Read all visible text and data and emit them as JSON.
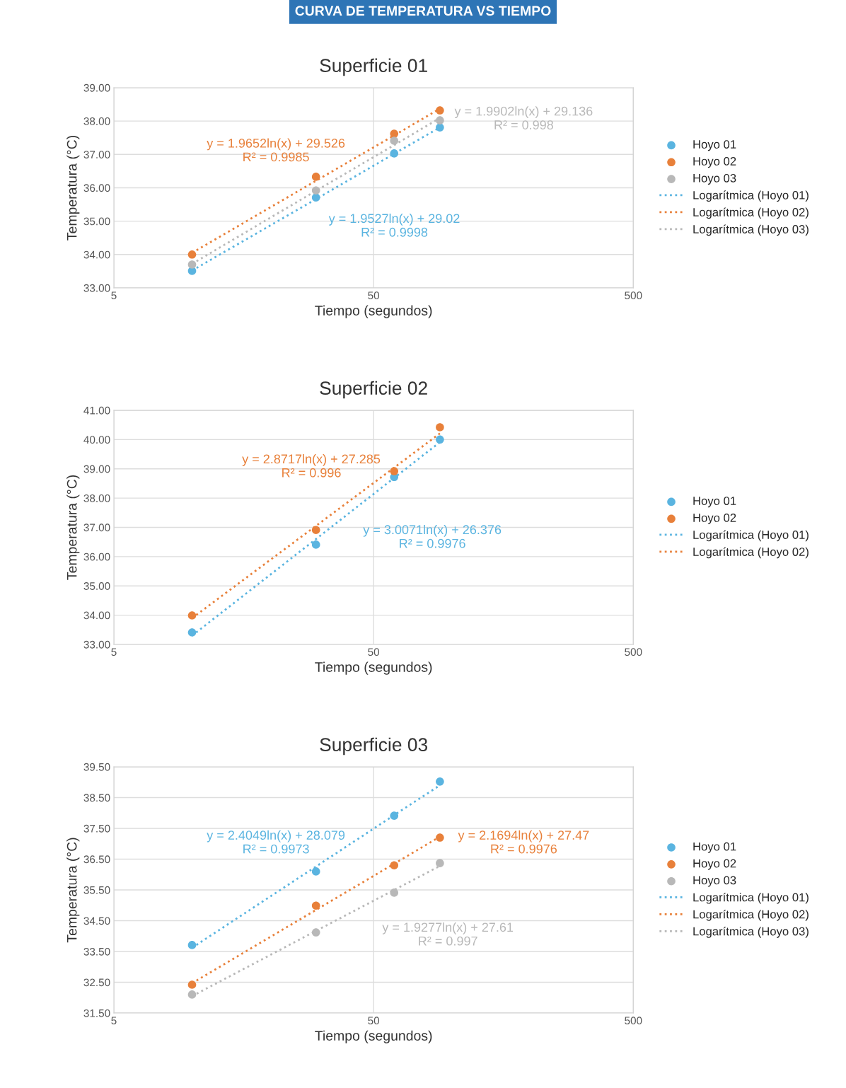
{
  "chart_data": [
    {
      "type": "scatter",
      "title": "Superficie 01",
      "xlabel": "Tiempo (segundos)",
      "ylabel": "Temperatura (°C)",
      "log": "x",
      "grid": true,
      "legend": "right",
      "marker": "circle",
      "xlim": [
        5,
        500
      ],
      "xticks": [
        5,
        50,
        500
      ],
      "ylim": [
        33,
        39
      ],
      "yticks": [
        {
          "value": 33,
          "label": "33.00"
        },
        {
          "value": 34,
          "label": "34.00"
        },
        {
          "value": 35,
          "label": "35.00"
        },
        {
          "value": 36,
          "label": "36.00"
        },
        {
          "value": 37,
          "label": "37.00"
        },
        {
          "value": 38,
          "label": "38.00"
        },
        {
          "value": 39,
          "label": "39.00"
        }
      ],
      "x": [
        10,
        30,
        60,
        90
      ],
      "series": [
        {
          "name": "Hoyo 01",
          "color": "#5ab4e0",
          "values": [
            33.51,
            35.71,
            37.03,
            37.81
          ]
        },
        {
          "name": "Hoyo 02",
          "color": "#e8803a",
          "values": [
            34.0,
            36.33,
            37.62,
            38.32
          ]
        },
        {
          "name": "Hoyo 03",
          "color": "#b8b8b8",
          "values": [
            33.7,
            35.92,
            37.41,
            38.02
          ]
        },
        {
          "name": "Logarítmica (Hoyo 01)",
          "type": "line",
          "line_style": "dotted",
          "marker": "none",
          "color": "#5ab4e0",
          "values": [
            33.52,
            35.66,
            37.02,
            37.81
          ]
        },
        {
          "name": "Logarítmica (Hoyo 02)",
          "type": "line",
          "line_style": "dotted",
          "marker": "none",
          "color": "#e8803a",
          "values": [
            34.05,
            36.21,
            37.57,
            38.37
          ]
        },
        {
          "name": "Logarítmica (Hoyo 03)",
          "type": "line",
          "line_style": "dotted",
          "marker": "none",
          "color": "#b8b8b8",
          "values": [
            33.72,
            35.91,
            37.28,
            38.09
          ]
        }
      ],
      "annotations": [
        "CURVA DE TEMPERATURA VS TIEMPO",
        "y = 1.9527ln(x) + 29.02\nR² = 0.9998",
        "y = 1.9652ln(x) + 29.526\nR² = 0.9985",
        "y = 1.9902ln(x) + 29.136\nR² = 0.998"
      ]
    },
    {
      "type": "scatter",
      "title": "Superficie 02",
      "xlabel": "Tiempo (segundos)",
      "ylabel": "Temperatura (°C)",
      "log": "x",
      "grid": true,
      "legend": "right",
      "marker": "circle",
      "xlim": [
        5,
        500
      ],
      "xticks": [
        5,
        50,
        500
      ],
      "ylim": [
        33,
        41
      ],
      "yticks": [
        {
          "value": 33,
          "label": "33.00"
        },
        {
          "value": 34,
          "label": "34.00"
        },
        {
          "value": 35,
          "label": "35.00"
        },
        {
          "value": 36,
          "label": "36.00"
        },
        {
          "value": 37,
          "label": "37.00"
        },
        {
          "value": 38,
          "label": "38.00"
        },
        {
          "value": 39,
          "label": "39.00"
        },
        {
          "value": 40,
          "label": "40.00"
        },
        {
          "value": 41,
          "label": "41.00"
        }
      ],
      "x": [
        10,
        30,
        60,
        90
      ],
      "series": [
        {
          "name": "Hoyo 01",
          "color": "#5ab4e0",
          "values": [
            33.41,
            36.41,
            38.72,
            40.0
          ]
        },
        {
          "name": "Hoyo 02",
          "color": "#e8803a",
          "values": [
            33.99,
            36.91,
            38.92,
            40.42
          ]
        },
        {
          "name": "Logarítmica (Hoyo 01)",
          "type": "line",
          "line_style": "dotted",
          "marker": "none",
          "color": "#5ab4e0",
          "values": [
            33.3,
            36.6,
            38.69,
            39.91
          ]
        },
        {
          "name": "Logarítmica (Hoyo 02)",
          "type": "line",
          "line_style": "dotted",
          "marker": "none",
          "color": "#e8803a",
          "values": [
            33.9,
            37.05,
            39.04,
            40.21
          ]
        }
      ],
      "annotations": [
        "y = 3.0071ln(x) + 26.376\nR² = 0.9976",
        "y = 2.8717ln(x) + 27.285\nR² = 0.996"
      ]
    },
    {
      "type": "scatter",
      "title": "Superficie 03",
      "xlabel": "Tiempo (segundos)",
      "ylabel": "Temperatura (°C)",
      "log": "x",
      "grid": true,
      "legend": "right",
      "marker": "circle",
      "xlim": [
        5,
        500
      ],
      "xticks": [
        5,
        50,
        500
      ],
      "ylim": [
        31.5,
        39.5
      ],
      "yticks": [
        {
          "value": 31.5,
          "label": "31.50"
        },
        {
          "value": 32.5,
          "label": "32.50"
        },
        {
          "value": 33.5,
          "label": "33.50"
        },
        {
          "value": 34.5,
          "label": "34.50"
        },
        {
          "value": 35.5,
          "label": "35.50"
        },
        {
          "value": 36.5,
          "label": "36.50"
        },
        {
          "value": 37.5,
          "label": "37.50"
        },
        {
          "value": 38.5,
          "label": "38.50"
        },
        {
          "value": 39.5,
          "label": "39.50"
        }
      ],
      "x": [
        10,
        30,
        60,
        90
      ],
      "series": [
        {
          "name": "Hoyo 01",
          "color": "#5ab4e0",
          "values": [
            33.71,
            36.1,
            37.91,
            39.02
          ]
        },
        {
          "name": "Hoyo 02",
          "color": "#e8803a",
          "values": [
            32.42,
            34.99,
            36.3,
            37.2
          ]
        },
        {
          "name": "Hoyo 03",
          "color": "#b8b8b8",
          "values": [
            32.1,
            34.12,
            35.41,
            36.37
          ]
        },
        {
          "name": "Logarítmica (Hoyo 01)",
          "type": "line",
          "line_style": "dotted",
          "marker": "none",
          "color": "#5ab4e0",
          "values": [
            33.62,
            36.26,
            37.93,
            38.9
          ]
        },
        {
          "name": "Logarítmica (Hoyo 02)",
          "type": "line",
          "line_style": "dotted",
          "marker": "none",
          "color": "#e8803a",
          "values": [
            32.47,
            34.85,
            36.35,
            37.23
          ]
        },
        {
          "name": "Logarítmica (Hoyo 03)",
          "type": "line",
          "line_style": "dotted",
          "marker": "none",
          "color": "#b8b8b8",
          "values": [
            32.05,
            34.17,
            35.5,
            36.28
          ]
        }
      ],
      "annotations": [
        "y = 2.4049ln(x) + 28.079\nR² = 0.9973",
        "y = 2.1694ln(x) + 27.47\nR² = 0.9976",
        "y = 1.9277ln(x) + 27.61\nR² = 0.997"
      ]
    }
  ]
}
